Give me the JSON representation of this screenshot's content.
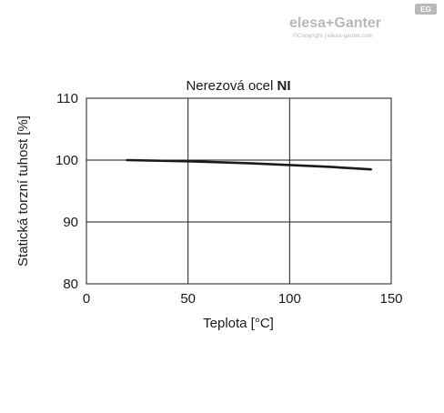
{
  "logo": {
    "brand": "elesa+Ganter",
    "badge": "EG",
    "copyright": "©Copyright | elesa-ganter.com"
  },
  "chart_data": {
    "type": "line",
    "title": "Nerezová ocel",
    "title_bold": "NI",
    "xlabel": "Teplota [°C]",
    "ylabel": "Statická torzní tuhost [%]",
    "xlim": [
      0,
      150
    ],
    "ylim": [
      80,
      110
    ],
    "xticks": [
      0,
      50,
      100,
      150
    ],
    "yticks": [
      80,
      90,
      100,
      110
    ],
    "grid": true,
    "colors": {
      "line": "#1a1a1a",
      "grid": "#1a1a1a",
      "logo": "#b9b9b9"
    },
    "series": [
      {
        "x": [
          20,
          50,
          80,
          100,
          120,
          140
        ],
        "y": [
          100,
          99.8,
          99.5,
          99.2,
          98.9,
          98.5
        ]
      }
    ]
  }
}
